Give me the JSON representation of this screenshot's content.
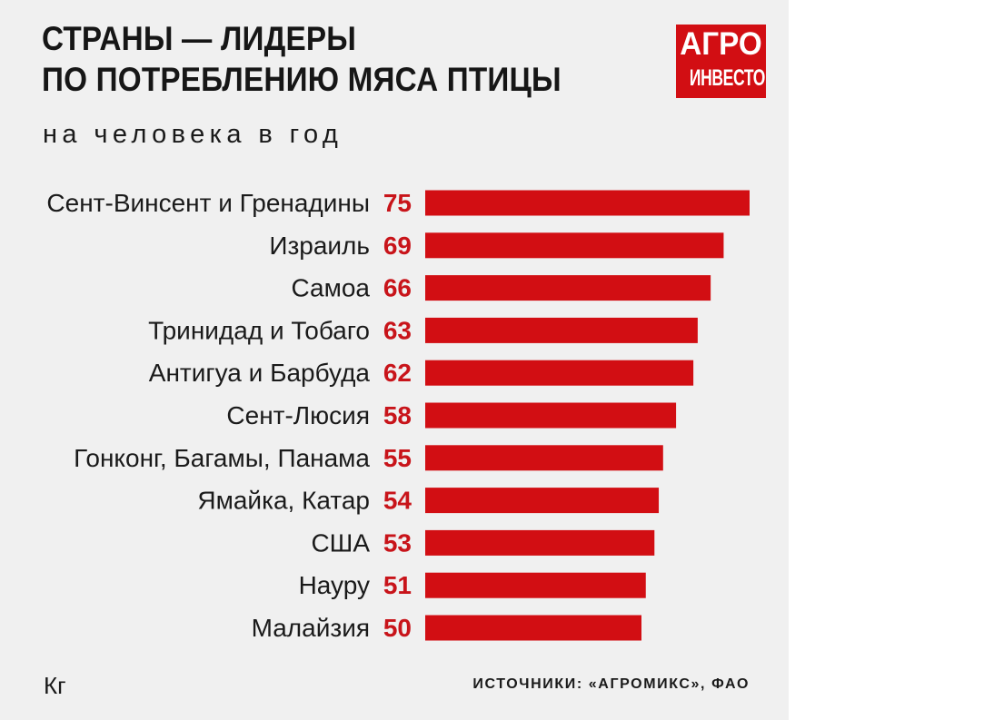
{
  "title": {
    "line1": "СТРАНЫ — ЛИДЕРЫ",
    "line2": "ПО ПОТРЕБЛЕНИЮ МЯСА ПТИЦЫ"
  },
  "subtitle": "на человека в год",
  "logo": {
    "line1": "АГРО",
    "line2": "ИНВЕСТОР",
    "color": "#d20e13"
  },
  "unit_label": "Кг",
  "source": "ИСТОЧНИКИ: «АГРОМИКС», ФАО",
  "colors": {
    "bar": "#d20e13",
    "value_text": "#c8141a",
    "background": "#f0f0f0"
  },
  "chart_data": {
    "type": "bar",
    "orientation": "horizontal",
    "title": "СТРАНЫ — ЛИДЕРЫ ПО ПОТРЕБЛЕНИЮ МЯСА ПТИЦЫ",
    "subtitle": "на человека в год",
    "unit": "Кг",
    "categories": [
      "Сент-Винсент и Гренадины",
      "Израиль",
      "Самоа",
      "Тринидад и Тобаго",
      "Антигуа и Барбуда",
      "Сент-Люсия",
      "Гонконг, Багамы, Панама",
      "Ямайка, Катар",
      "США",
      "Науру",
      "Малайзия"
    ],
    "values": [
      75,
      69,
      66,
      63,
      62,
      58,
      55,
      54,
      53,
      51,
      50
    ],
    "xlim": [
      0,
      75
    ],
    "grid": false,
    "data_labels": true
  }
}
